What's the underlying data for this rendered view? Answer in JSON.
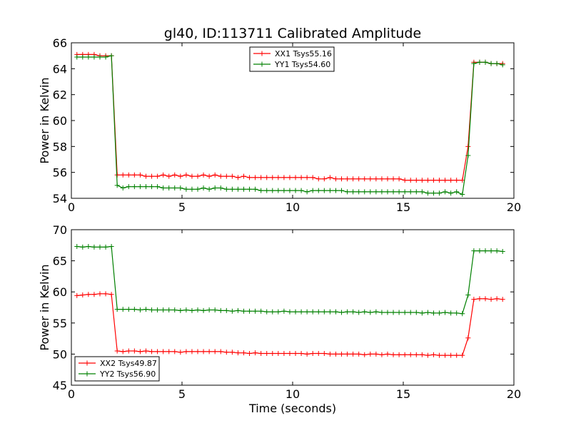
{
  "title": "gl40, ID:113711 Calibrated Amplitude",
  "colors": {
    "red": "#ff0000",
    "green": "#008000"
  },
  "chart_data": [
    {
      "type": "line",
      "ylabel": "Power in Kelvin",
      "xlabel": "",
      "xlim": [
        0,
        20
      ],
      "ylim": [
        54,
        66
      ],
      "xticks": [
        "0",
        "5",
        "10",
        "15",
        "20"
      ],
      "yticks": [
        "54",
        "56",
        "58",
        "60",
        "62",
        "64",
        "66"
      ],
      "legend_position": "top-center",
      "x": [
        0.25,
        0.51,
        0.77,
        1.03,
        1.29,
        1.55,
        1.81,
        2.07,
        2.33,
        2.59,
        2.85,
        3.11,
        3.37,
        3.63,
        3.89,
        4.15,
        4.41,
        4.67,
        4.93,
        5.19,
        5.45,
        5.71,
        5.97,
        6.23,
        6.49,
        6.75,
        7.01,
        7.27,
        7.53,
        7.79,
        8.05,
        8.31,
        8.57,
        8.83,
        9.09,
        9.35,
        9.61,
        9.87,
        10.13,
        10.39,
        10.65,
        10.91,
        11.17,
        11.43,
        11.69,
        11.95,
        12.21,
        12.47,
        12.73,
        12.99,
        13.25,
        13.51,
        13.77,
        14.03,
        14.29,
        14.55,
        14.81,
        15.07,
        15.33,
        15.59,
        15.85,
        16.11,
        16.37,
        16.63,
        16.89,
        17.15,
        17.41,
        17.67,
        17.93,
        18.19,
        18.45,
        18.71,
        18.97,
        19.23,
        19.49
      ],
      "series": [
        {
          "name": "XX1 Tsys55.16",
          "color": "#ff0000",
          "values": [
            65.1,
            65.1,
            65.1,
            65.1,
            65.0,
            65.0,
            65.0,
            55.8,
            55.8,
            55.8,
            55.8,
            55.8,
            55.7,
            55.7,
            55.7,
            55.8,
            55.7,
            55.8,
            55.7,
            55.8,
            55.7,
            55.7,
            55.8,
            55.7,
            55.8,
            55.7,
            55.7,
            55.7,
            55.6,
            55.7,
            55.6,
            55.6,
            55.6,
            55.6,
            55.6,
            55.6,
            55.6,
            55.6,
            55.6,
            55.6,
            55.6,
            55.6,
            55.5,
            55.5,
            55.6,
            55.5,
            55.5,
            55.5,
            55.5,
            55.5,
            55.5,
            55.5,
            55.5,
            55.5,
            55.5,
            55.5,
            55.5,
            55.4,
            55.4,
            55.4,
            55.4,
            55.4,
            55.4,
            55.4,
            55.4,
            55.4,
            55.4,
            55.4,
            58.0,
            64.5,
            64.5,
            64.5,
            64.4,
            64.4,
            64.4
          ]
        },
        {
          "name": "YY1 Tsys54.60",
          "color": "#008000",
          "values": [
            64.9,
            64.9,
            64.9,
            64.9,
            64.9,
            64.9,
            65.0,
            55.0,
            54.8,
            54.9,
            54.9,
            54.9,
            54.9,
            54.9,
            54.9,
            54.8,
            54.8,
            54.8,
            54.8,
            54.7,
            54.7,
            54.7,
            54.8,
            54.7,
            54.8,
            54.8,
            54.7,
            54.7,
            54.7,
            54.7,
            54.7,
            54.7,
            54.6,
            54.6,
            54.6,
            54.6,
            54.6,
            54.6,
            54.6,
            54.6,
            54.5,
            54.6,
            54.6,
            54.6,
            54.6,
            54.6,
            54.6,
            54.5,
            54.5,
            54.5,
            54.5,
            54.5,
            54.5,
            54.5,
            54.5,
            54.5,
            54.5,
            54.5,
            54.5,
            54.5,
            54.5,
            54.4,
            54.4,
            54.4,
            54.5,
            54.4,
            54.5,
            54.3,
            57.3,
            64.4,
            64.5,
            64.5,
            64.4,
            64.4,
            64.3
          ]
        }
      ]
    },
    {
      "type": "line",
      "ylabel": "Power in Kelvin",
      "xlabel": "Time (seconds)",
      "xlim": [
        0,
        20
      ],
      "ylim": [
        45,
        70
      ],
      "xticks": [
        "0",
        "5",
        "10",
        "15",
        "20"
      ],
      "yticks": [
        "45",
        "50",
        "55",
        "60",
        "65",
        "70"
      ],
      "legend_position": "lower-left",
      "x": [
        0.25,
        0.51,
        0.77,
        1.03,
        1.29,
        1.55,
        1.81,
        2.07,
        2.33,
        2.59,
        2.85,
        3.11,
        3.37,
        3.63,
        3.89,
        4.15,
        4.41,
        4.67,
        4.93,
        5.19,
        5.45,
        5.71,
        5.97,
        6.23,
        6.49,
        6.75,
        7.01,
        7.27,
        7.53,
        7.79,
        8.05,
        8.31,
        8.57,
        8.83,
        9.09,
        9.35,
        9.61,
        9.87,
        10.13,
        10.39,
        10.65,
        10.91,
        11.17,
        11.43,
        11.69,
        11.95,
        12.21,
        12.47,
        12.73,
        12.99,
        13.25,
        13.51,
        13.77,
        14.03,
        14.29,
        14.55,
        14.81,
        15.07,
        15.33,
        15.59,
        15.85,
        16.11,
        16.37,
        16.63,
        16.89,
        17.15,
        17.41,
        17.67,
        17.93,
        18.19,
        18.45,
        18.71,
        18.97,
        19.23,
        19.49
      ],
      "series": [
        {
          "name": "XX2 Tsys49.87",
          "color": "#ff0000",
          "values": [
            59.4,
            59.5,
            59.6,
            59.6,
            59.7,
            59.7,
            59.6,
            50.5,
            50.4,
            50.5,
            50.5,
            50.4,
            50.5,
            50.4,
            50.4,
            50.4,
            50.4,
            50.4,
            50.3,
            50.4,
            50.4,
            50.4,
            50.4,
            50.4,
            50.4,
            50.4,
            50.3,
            50.3,
            50.2,
            50.2,
            50.1,
            50.2,
            50.1,
            50.1,
            50.1,
            50.1,
            50.1,
            50.1,
            50.1,
            50.1,
            50.0,
            50.1,
            50.1,
            50.1,
            50.0,
            50.0,
            50.0,
            50.0,
            50.0,
            50.0,
            49.9,
            50.0,
            50.0,
            49.9,
            50.0,
            49.9,
            49.9,
            49.9,
            49.9,
            49.9,
            49.9,
            49.8,
            49.9,
            49.8,
            49.8,
            49.8,
            49.8,
            49.8,
            52.6,
            58.8,
            58.9,
            58.9,
            58.8,
            58.9,
            58.8
          ]
        },
        {
          "name": "YY2 Tsys56.90",
          "color": "#008000",
          "values": [
            67.3,
            67.2,
            67.3,
            67.2,
            67.2,
            67.2,
            67.3,
            57.2,
            57.2,
            57.2,
            57.2,
            57.1,
            57.2,
            57.1,
            57.1,
            57.1,
            57.1,
            57.1,
            57.0,
            57.1,
            57.0,
            57.1,
            57.0,
            57.1,
            57.1,
            57.0,
            57.0,
            56.9,
            57.0,
            56.9,
            56.9,
            56.9,
            56.9,
            56.8,
            56.8,
            56.8,
            56.9,
            56.8,
            56.8,
            56.8,
            56.8,
            56.8,
            56.8,
            56.8,
            56.8,
            56.8,
            56.7,
            56.8,
            56.8,
            56.7,
            56.8,
            56.7,
            56.8,
            56.7,
            56.7,
            56.7,
            56.7,
            56.7,
            56.7,
            56.7,
            56.6,
            56.7,
            56.6,
            56.6,
            56.7,
            56.6,
            56.6,
            56.5,
            59.5,
            66.6,
            66.6,
            66.6,
            66.6,
            66.6,
            66.5
          ]
        }
      ]
    }
  ]
}
